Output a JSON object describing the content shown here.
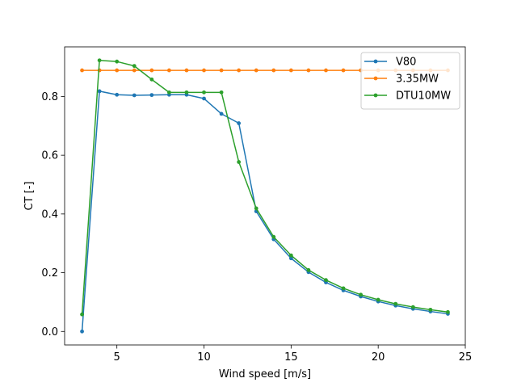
{
  "chart_data": {
    "type": "line",
    "title": "",
    "xlabel": "Wind speed [m/s]",
    "ylabel": "CT [-]",
    "xlim": [
      2.0,
      25.0
    ],
    "ylim": [
      -0.046,
      0.969
    ],
    "xticks": [
      5,
      10,
      15,
      20,
      25
    ],
    "xtick_labels": [
      "5",
      "10",
      "15",
      "20",
      "25"
    ],
    "yticks": [
      0.0,
      0.2,
      0.4,
      0.6,
      0.8
    ],
    "ytick_labels": [
      "0.0",
      "0.2",
      "0.4",
      "0.6",
      "0.8"
    ],
    "grid": false,
    "legend_position": "top-right",
    "x": [
      3,
      4,
      5,
      6,
      7,
      8,
      9,
      10,
      11,
      12,
      13,
      14,
      15,
      16,
      17,
      18,
      19,
      20,
      21,
      22,
      23,
      24
    ],
    "series": [
      {
        "name": "V80",
        "color": "#1f77b4",
        "values": [
          0.0,
          0.818,
          0.806,
          0.804,
          0.805,
          0.806,
          0.806,
          0.793,
          0.741,
          0.709,
          0.409,
          0.314,
          0.249,
          0.202,
          0.167,
          0.14,
          0.119,
          0.102,
          0.088,
          0.077,
          0.068,
          0.06
        ]
      },
      {
        "name": "3.35MW",
        "color": "#ff7f0e",
        "values": [
          0.889,
          0.889,
          0.889,
          0.889,
          0.889,
          0.889,
          0.889,
          0.889,
          0.889,
          0.889,
          0.889,
          0.889,
          0.889,
          0.889,
          0.889,
          0.889,
          0.889,
          0.889,
          0.889,
          0.889,
          0.889,
          0.889
        ]
      },
      {
        "name": "DTU10MW",
        "color": "#2ca02c",
        "values": [
          0.058,
          0.923,
          0.919,
          0.904,
          0.858,
          0.814,
          0.814,
          0.814,
          0.814,
          0.577,
          0.419,
          0.322,
          0.259,
          0.209,
          0.175,
          0.147,
          0.125,
          0.108,
          0.094,
          0.083,
          0.074,
          0.066
        ]
      }
    ]
  }
}
